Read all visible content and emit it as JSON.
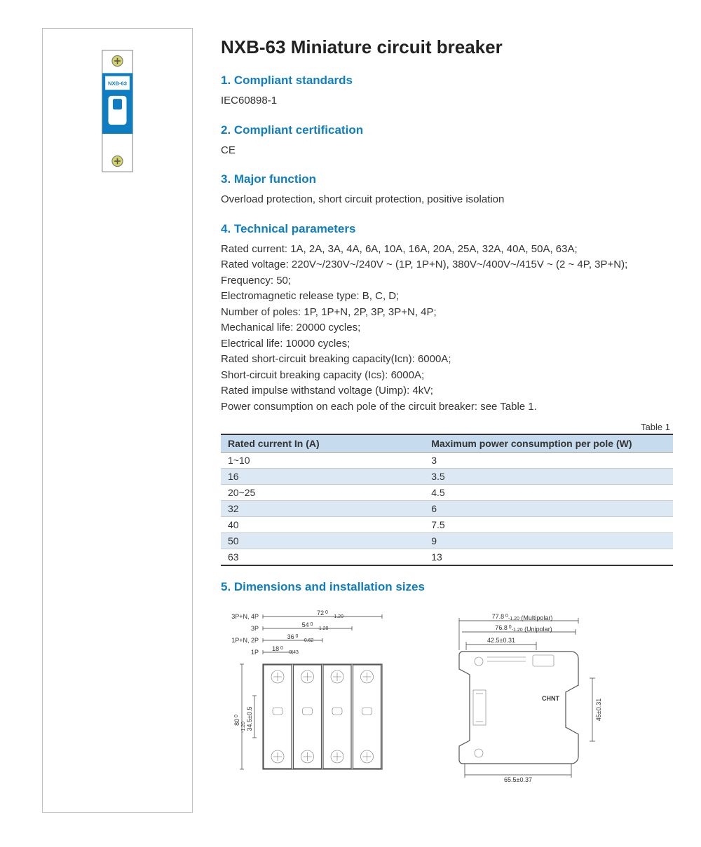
{
  "title": "NXB-63 Miniature circuit breaker",
  "heading_color": "#0f7dc2",
  "sections": {
    "s1": {
      "heading": "1. Compliant standards",
      "text": "IEC60898-1"
    },
    "s2": {
      "heading": "2. Compliant certification",
      "text": "CE"
    },
    "s3": {
      "heading": "3. Major function",
      "text": "Overload protection, short circuit protection, positive isolation"
    },
    "s4": {
      "heading": "4. Technical parameters",
      "lines": [
        "Rated current: 1A, 2A, 3A, 4A, 6A, 10A, 16A, 20A, 25A, 32A, 40A, 50A, 63A;",
        "Rated voltage: 220V~/230V~/240V ~ (1P, 1P+N), 380V~/400V~/415V ~ (2 ~ 4P, 3P+N);",
        "Frequency: 50;",
        "Electromagnetic release type: B, C, D;",
        "Number of poles: 1P, 1P+N, 2P, 3P, 3P+N, 4P;",
        "Mechanical life: 20000 cycles;",
        "Electrical life: 10000 cycles;",
        "Rated short-circuit breaking capacity(Icn): 6000A;",
        "Short-circuit breaking capacity (Ics): 6000A;",
        "Rated impulse withstand voltage (Uimp): 4kV;",
        "Power consumption on each pole of the circuit breaker: see Table 1."
      ]
    },
    "s5": {
      "heading": "5. Dimensions and installation sizes"
    }
  },
  "table1": {
    "caption": "Table 1",
    "columns": [
      "Rated current In (A)",
      "Maximum power consumption per pole (W)"
    ],
    "rows": [
      [
        "1~10",
        "3"
      ],
      [
        "16",
        "3.5"
      ],
      [
        "20~25",
        "4.5"
      ],
      [
        "32",
        "6"
      ],
      [
        "40",
        "7.5"
      ],
      [
        "50",
        "9"
      ],
      [
        "63",
        "13"
      ]
    ],
    "header_bg": "#c6dbee",
    "shade_bg": "#dce8f3"
  },
  "front_diagram": {
    "pole_rows": [
      {
        "label": "3P+N, 4P",
        "dim": "72",
        "sub": "-1.20"
      },
      {
        "label": "3P",
        "dim": "54",
        "sub": "-1.20"
      },
      {
        "label": "1P+N, 2P",
        "dim": "36",
        "sub": "-0.62"
      },
      {
        "label": "1P",
        "dim": "18",
        "sub": "-0.43"
      }
    ],
    "height_dims": {
      "total": "80",
      "total_sub": "-1.20",
      "inner": "34.5±0.5"
    }
  },
  "side_diagram": {
    "top_dims": [
      {
        "value": "77.8",
        "sub": "-1.20",
        "note": "(Multipolar)"
      },
      {
        "value": "76.8",
        "sub": "-1.20",
        "note": "(Unipolar)"
      }
    ],
    "mid_dim": "42.5±0.31",
    "right_dim": "45±0.31",
    "bottom_dim": "65.5±0.37",
    "brand": "CHNT"
  }
}
